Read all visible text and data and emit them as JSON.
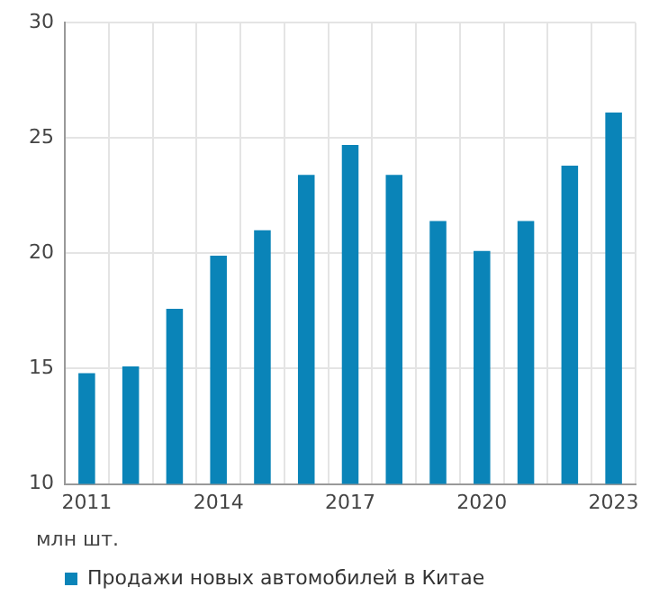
{
  "chart_data": {
    "type": "bar",
    "categories": [
      "2011",
      null,
      null,
      "2014",
      null,
      null,
      "2017",
      null,
      null,
      "2020",
      null,
      null,
      "2023"
    ],
    "series": [
      {
        "name": "Продажи новых автомобилей в Китае",
        "color": "#0a84b8",
        "values": [
          14.8,
          15.1,
          17.6,
          19.9,
          21.0,
          23.4,
          24.7,
          23.4,
          21.4,
          20.1,
          21.4,
          23.8,
          26.1
        ]
      }
    ],
    "ylim": [
      10,
      30
    ],
    "yticks": [
      10,
      15,
      20,
      25,
      30
    ],
    "grid": true,
    "legend": "bottom",
    "annotations": [
      "млн шт."
    ]
  }
}
